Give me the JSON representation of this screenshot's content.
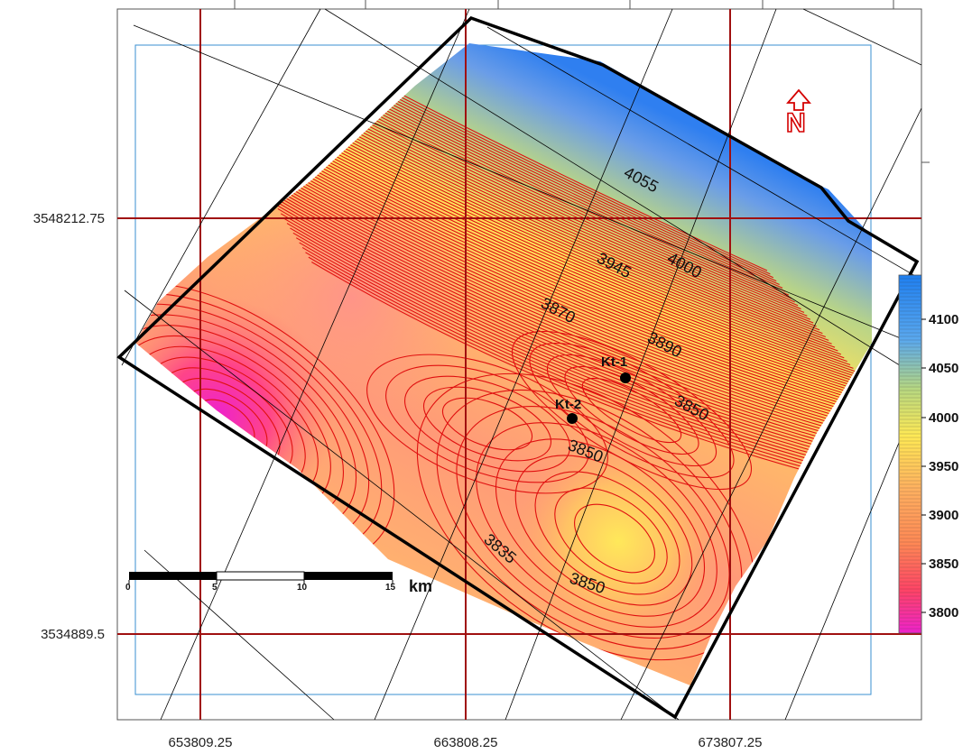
{
  "axes": {
    "x_ticks": [
      "653809.25",
      "663808.25",
      "673807.25"
    ],
    "y_ticks": [
      "3548212.75",
      "3534889.5"
    ]
  },
  "contour_labels": [
    "4055",
    "4000",
    "3945",
    "3870",
    "3890",
    "3850",
    "3850",
    "3835",
    "3850"
  ],
  "wells": [
    {
      "name": "Kt-1"
    },
    {
      "name": "Kt-2"
    }
  ],
  "scale_bar": {
    "ticks": [
      "0",
      "5",
      "10",
      "15"
    ],
    "unit": "km"
  },
  "north_arrow": {
    "icon": "north-arrow-icon",
    "letter": "N",
    "color": "#d40000"
  },
  "legend": {
    "ticks": [
      "4100",
      "4050",
      "4000",
      "3950",
      "3900",
      "3850",
      "3800"
    ],
    "colors": [
      "#ee22cc",
      "#ff4466",
      "#ff8855",
      "#ffb060",
      "#ffe955",
      "#b8d880",
      "#5aa8ee",
      "#1f7ff0"
    ]
  },
  "colors": {
    "grid_lines": "#a01010",
    "contour_lines": "#e01010",
    "boundary": "#000000"
  }
}
